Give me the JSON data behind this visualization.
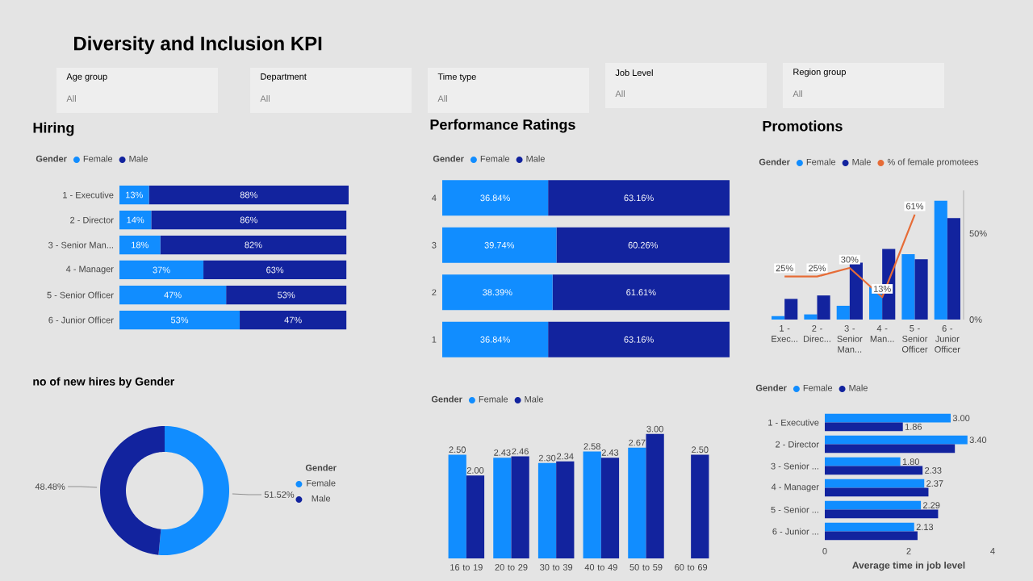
{
  "chart_data": [
    {
      "type": "other",
      "title": "Diversity and Inclusion KPI",
      "annotations": [
        "Age group",
        "All",
        "Department",
        "All",
        "Time type",
        "All",
        "Job Level",
        "All",
        "Region group",
        "All"
      ]
    },
    {
      "type": "bar",
      "title": "Hiring",
      "orientation": "horizontal",
      "stacked": true,
      "legend_title": "Gender",
      "legend": "top left",
      "tick_labels": "y",
      "categories": [
        "1 - Executive",
        "2 - Director",
        "3 - Senior Man...",
        "4 - Manager",
        "5 - Senior Officer",
        "6 - Junior Officer"
      ],
      "series": [
        {
          "name": "Female",
          "color": "#118dff",
          "values": [
            13,
            14,
            18,
            37,
            47,
            53
          ],
          "value_labels": [
            "13%",
            "14%",
            "18%",
            "37%",
            "47%",
            "53%"
          ]
        },
        {
          "name": "Male",
          "color": "#12239e",
          "values": [
            88,
            86,
            82,
            63,
            53,
            47
          ],
          "value_labels": [
            "88%",
            "86%",
            "82%",
            "63%",
            "53%",
            "47%"
          ]
        }
      ]
    },
    {
      "type": "bar",
      "title": "Performance Ratings",
      "orientation": "horizontal",
      "stacked": true,
      "legend_title": "Gender",
      "legend": "top left",
      "tick_labels": "y",
      "categories": [
        "4",
        "3",
        "2",
        "1"
      ],
      "series": [
        {
          "name": "Female",
          "color": "#118dff",
          "values": [
            36.84,
            39.74,
            38.39,
            36.84
          ],
          "value_labels": [
            "36.84%",
            "39.74%",
            "38.39%",
            "36.84%"
          ]
        },
        {
          "name": "Male",
          "color": "#12239e",
          "values": [
            63.16,
            60.26,
            61.61,
            63.16
          ],
          "value_labels": [
            "63.16%",
            "60.26%",
            "61.61%",
            "63.16%"
          ]
        }
      ]
    },
    {
      "type": "bar",
      "title": "Promotions",
      "legend_title": "Gender",
      "legend": "top",
      "categories": [
        "1 - Exec...",
        "2 - Direc...",
        "3 - Senior Man...",
        "4 - Man...",
        "5 - Senior Officer",
        "6 - Junior Officer"
      ],
      "ylim": [
        0,
        75
      ],
      "yticks": [
        {
          "value": 0,
          "label": "0%"
        },
        {
          "value": 50,
          "label": "50%"
        }
      ],
      "series": [
        {
          "name": "Female",
          "color": "#118dff",
          "values": [
            2,
            3,
            8,
            19,
            38,
            69
          ]
        },
        {
          "name": "Male",
          "color": "#12239e",
          "values": [
            12,
            14,
            33,
            41,
            35,
            59
          ]
        },
        {
          "name": "% of female promotees",
          "type": "line",
          "color": "#e66c37",
          "values": [
            25,
            25,
            30,
            13,
            61,
            null
          ],
          "value_labels": [
            "25%",
            "25%",
            "30%",
            "13%",
            "61%",
            null
          ]
        }
      ]
    },
    {
      "type": "donut",
      "title": "no of new hires by Gender",
      "legend_title": "Gender",
      "legend": "right",
      "categories": [
        "Female",
        "Male"
      ],
      "values": [
        51.52,
        48.48
      ],
      "colors": [
        "#118dff",
        "#12239e"
      ],
      "value_labels": [
        "51.52%",
        "48.48%"
      ]
    },
    {
      "type": "bar",
      "legend_title": "Gender",
      "legend": "top left",
      "tick_labels": "x",
      "categories": [
        "16 to 19",
        "20 to 29",
        "30 to 39",
        "40 to 49",
        "50 to 59",
        "60 to 69"
      ],
      "series": [
        {
          "name": "Female",
          "color": "#118dff",
          "values": [
            2.5,
            2.43,
            2.3,
            2.58,
            2.67,
            null
          ],
          "value_labels": [
            "2.50",
            "2.43",
            "2.30",
            "2.58",
            "2.67",
            null
          ]
        },
        {
          "name": "Male",
          "color": "#12239e",
          "values": [
            2.0,
            2.46,
            2.34,
            2.43,
            3.0,
            2.5
          ],
          "value_labels": [
            "2.00",
            "2.46",
            "2.34",
            "2.43",
            "3.00",
            "2.50"
          ]
        }
      ]
    },
    {
      "type": "bar",
      "orientation": "horizontal",
      "legend_title": "Gender",
      "legend": "top left",
      "xlabel": "Average time in job level",
      "categories": [
        "1 - Executive",
        "2 - Director",
        "3 - Senior ...",
        "4 - Manager",
        "5 - Senior ...",
        "6 - Junior ..."
      ],
      "xlim": [
        0,
        4
      ],
      "xticks": [
        0,
        2,
        4
      ],
      "series": [
        {
          "name": "Female",
          "color": "#118dff",
          "values": [
            3.0,
            3.4,
            1.8,
            2.37,
            2.29,
            2.13
          ],
          "value_labels": [
            "3.00",
            "3.40",
            "1.80",
            "2.37",
            "2.29",
            "2.13"
          ]
        },
        {
          "name": "Male",
          "color": "#12239e",
          "values": [
            1.86,
            3.1,
            2.33,
            2.47,
            2.7,
            2.21
          ],
          "value_labels": [
            "1.86",
            null,
            "2.33",
            null,
            null,
            null
          ]
        }
      ]
    }
  ]
}
